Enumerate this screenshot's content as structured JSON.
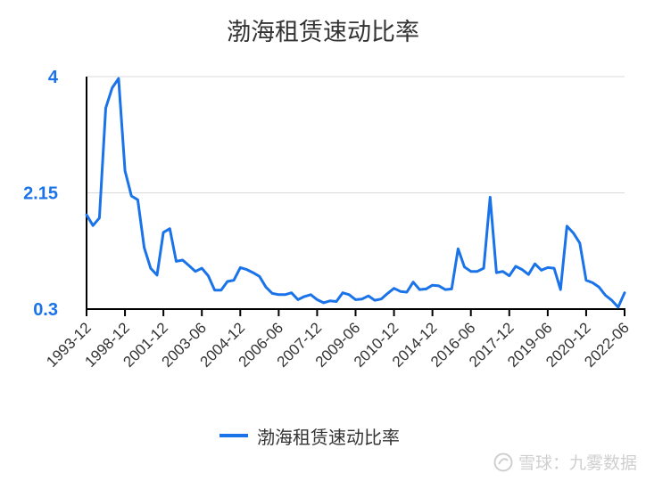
{
  "chart_data": {
    "type": "line",
    "title": "渤海租赁速动比率",
    "xlabel": "",
    "ylabel": "",
    "ylim": [
      0.3,
      4
    ],
    "y_ticks": [
      "0.3",
      "2.15",
      "4"
    ],
    "x_tick_labels": [
      "1993-12",
      "1998-12",
      "2001-12",
      "2003-06",
      "2004-12",
      "2006-06",
      "2007-12",
      "2009-06",
      "2010-12",
      "2014-12",
      "2016-06",
      "2017-12",
      "2019-06",
      "2020-12",
      "2022-06"
    ],
    "grid": true,
    "legend_position": "bottom",
    "series": [
      {
        "name": "渤海租赁速动比率",
        "color": "#1a73e8",
        "values": [
          1.8,
          1.63,
          1.75,
          3.5,
          3.82,
          3.97,
          2.5,
          2.1,
          2.04,
          1.28,
          0.95,
          0.84,
          1.52,
          1.58,
          1.06,
          1.08,
          0.99,
          0.9,
          0.95,
          0.83,
          0.6,
          0.6,
          0.74,
          0.76,
          0.96,
          0.93,
          0.88,
          0.82,
          0.65,
          0.55,
          0.53,
          0.53,
          0.56,
          0.45,
          0.5,
          0.53,
          0.45,
          0.4,
          0.43,
          0.42,
          0.56,
          0.53,
          0.45,
          0.46,
          0.51,
          0.44,
          0.46,
          0.55,
          0.63,
          0.58,
          0.57,
          0.73,
          0.61,
          0.62,
          0.68,
          0.67,
          0.61,
          0.62,
          1.26,
          0.97,
          0.9,
          0.9,
          0.95,
          2.08,
          0.88,
          0.9,
          0.83,
          0.98,
          0.93,
          0.85,
          1.02,
          0.92,
          0.96,
          0.95,
          0.61,
          1.62,
          1.51,
          1.35,
          0.76,
          0.72,
          0.65,
          0.52,
          0.44,
          0.33,
          0.56
        ]
      }
    ]
  },
  "watermark": {
    "text": "雪球：九雾数据"
  }
}
